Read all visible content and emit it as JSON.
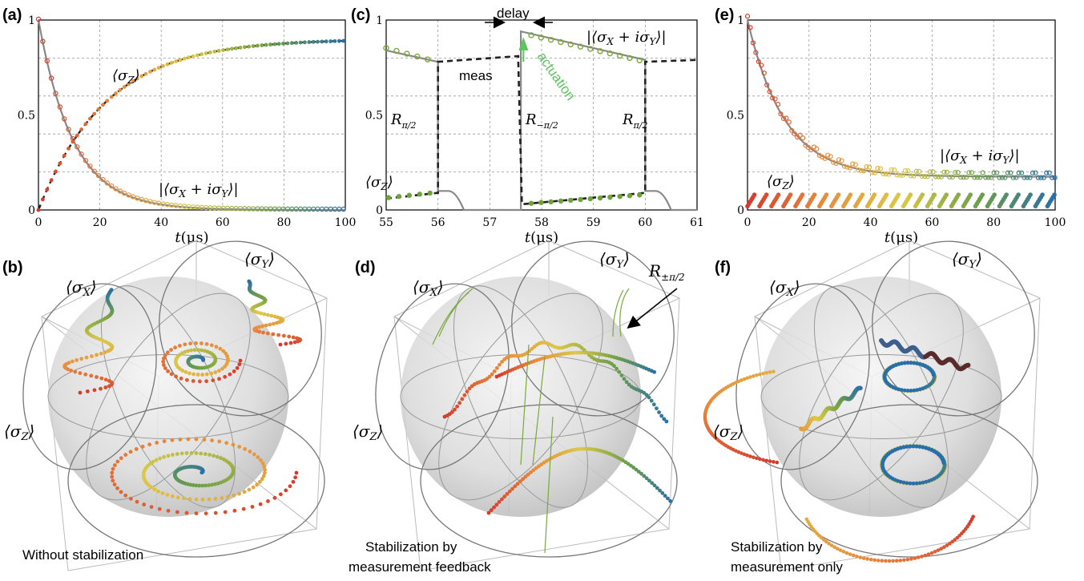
{
  "panels": {
    "a": "(a)",
    "b": "(b)",
    "c": "(c)",
    "d": "(d)",
    "e": "(e)",
    "f": "(f)"
  },
  "labels": {
    "sz": "⟨σ_Z⟩",
    "sxy": "|⟨σ_X + iσ_Y⟩|",
    "sx": "⟨σ_X⟩",
    "sy": "⟨σ_Y⟩",
    "xlabel": "t(μs)",
    "delay": "delay",
    "meas": "meas",
    "actuation": "actuation",
    "r_pos": "R_{π/2}",
    "r_neg": "R_{−π/2}",
    "r_pm": "R_{±π/2}"
  },
  "captions": {
    "b": "Without stabilization",
    "d_line1": "Stabilization by",
    "d_line2": "measurement feedback",
    "f_line1": "Stabilization by",
    "f_line2": "measurement only"
  },
  "chart_data": [
    {
      "panel": "a",
      "type": "line",
      "xlabel": "t(μs)",
      "xlim": [
        0,
        100
      ],
      "ylim": [
        0,
        1
      ],
      "xticks": [
        0,
        20,
        40,
        60,
        80,
        100
      ],
      "yticks": [
        "0",
        "0.5",
        "1"
      ],
      "grid": true,
      "series": [
        {
          "name": "⟨σ_Z⟩",
          "fit": "dashed-black",
          "x": [
            0,
            10,
            20,
            30,
            40,
            50,
            60,
            70,
            80,
            90,
            100
          ],
          "y": [
            0.0,
            0.27,
            0.47,
            0.61,
            0.71,
            0.78,
            0.83,
            0.86,
            0.88,
            0.89,
            0.9
          ]
        },
        {
          "name": "|⟨σ_X + iσ_Y⟩|",
          "fit": "solid-gray",
          "x": [
            0,
            10,
            20,
            30,
            40,
            50,
            60,
            70,
            80,
            90,
            100
          ],
          "y": [
            1.0,
            0.41,
            0.17,
            0.07,
            0.03,
            0.012,
            0.005,
            0.002,
            0.001,
            0.0,
            0.0
          ]
        }
      ]
    },
    {
      "panel": "c",
      "type": "line",
      "xlabel": "t(μs)",
      "xlim": [
        55,
        61
      ],
      "ylim": [
        0,
        1
      ],
      "xticks": [
        55,
        56,
        57,
        58,
        59,
        60,
        61
      ],
      "yticks": [
        "0",
        "0.5",
        "1"
      ],
      "grid": true,
      "series": [
        {
          "name": "⟨σ_Z⟩",
          "x": [
            55.0,
            55.2,
            55.4,
            55.6,
            55.8,
            56.0,
            56.0,
            57.6,
            57.6,
            57.8,
            58.0,
            58.5,
            59.0,
            59.5,
            60.0,
            60.0,
            61.0
          ],
          "y": [
            0.06,
            0.07,
            0.075,
            0.08,
            0.085,
            0.09,
            0.78,
            0.81,
            0.03,
            0.035,
            0.04,
            0.05,
            0.06,
            0.07,
            0.09,
            0.78,
            0.79
          ]
        },
        {
          "name": "|⟨σ_X + iσ_Y⟩|",
          "x": [
            55.0,
            55.5,
            56.0,
            56.5,
            57.6,
            57.6,
            58.0,
            59.0,
            60.0,
            60.2,
            60.5,
            61.0
          ],
          "y": [
            0.84,
            0.81,
            0.78,
            0.78,
            0.81,
            0.94,
            0.92,
            0.86,
            0.79,
            0.1,
            0.0,
            0.0
          ]
        }
      ]
    },
    {
      "panel": "e",
      "type": "scatter",
      "xlabel": "t(μs)",
      "xlim": [
        0,
        100
      ],
      "ylim": [
        0,
        1
      ],
      "xticks": [
        0,
        20,
        40,
        60,
        80,
        100
      ],
      "yticks": [
        "0",
        "0.5",
        "1"
      ],
      "grid": true,
      "series": [
        {
          "name": "|⟨σ_X + iσ_Y⟩|",
          "x": [
            0,
            10,
            20,
            30,
            40,
            50,
            60,
            70,
            80,
            90,
            100
          ],
          "y": [
            1.0,
            0.55,
            0.35,
            0.25,
            0.21,
            0.19,
            0.185,
            0.18,
            0.18,
            0.175,
            0.175
          ]
        },
        {
          "name": "⟨σ_Z⟩",
          "x": [
            0,
            10,
            20,
            30,
            40,
            50,
            60,
            70,
            80,
            90,
            100
          ],
          "y": [
            0.05,
            0.06,
            0.06,
            0.06,
            0.06,
            0.06,
            0.06,
            0.06,
            0.06,
            0.06,
            0.06
          ]
        }
      ]
    }
  ]
}
